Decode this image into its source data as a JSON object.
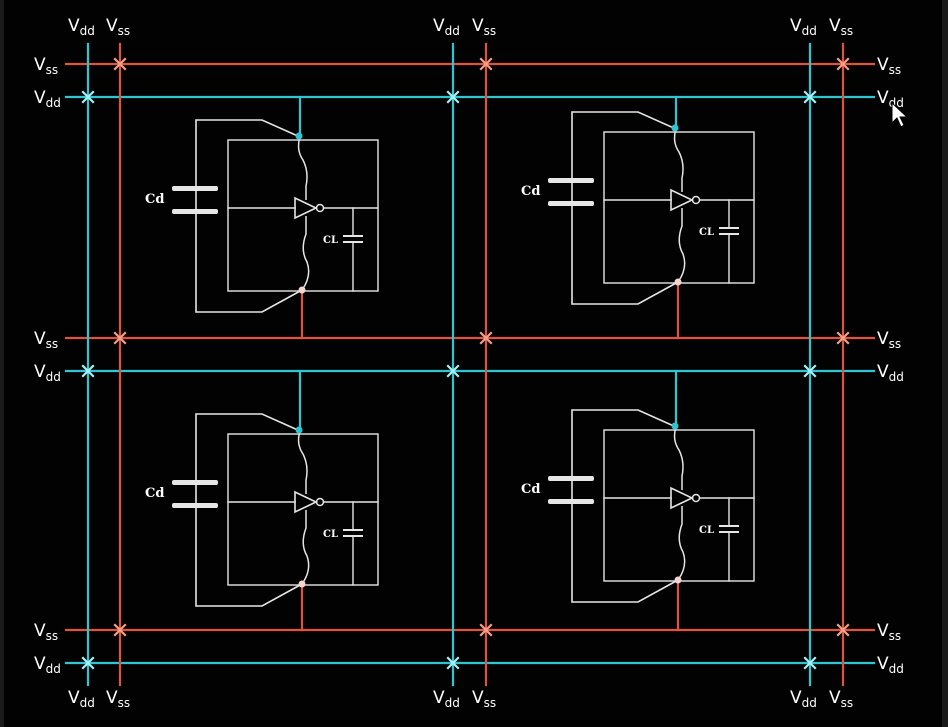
{
  "colors": {
    "vdd": "#2fc6d4",
    "vss": "#e0553a",
    "circuit": "#e6e6e6",
    "background": "#020202"
  },
  "labels": {
    "vdd": {
      "main": "V",
      "sub": "dd"
    },
    "vss": {
      "main": "V",
      "sub": "ss"
    },
    "cd": "Cd",
    "cl": "CL"
  },
  "grid": {
    "vertical_rails": [
      "Vdd",
      "Vss",
      "Vdd",
      "Vss",
      "Vdd",
      "Vss"
    ],
    "horizontal_rails": [
      "Vss",
      "Vdd",
      "Vss",
      "Vdd",
      "Vss",
      "Vdd"
    ],
    "cells": [
      {
        "row": 1,
        "col": 1,
        "cd_label": "Cd",
        "cl_label": "CL"
      },
      {
        "row": 1,
        "col": 2,
        "cd_label": "Cd",
        "cl_label": "CL"
      },
      {
        "row": 2,
        "col": 1,
        "cd_label": "Cd",
        "cl_label": "CL"
      },
      {
        "row": 2,
        "col": 2,
        "cd_label": "Cd",
        "cl_label": "CL"
      }
    ]
  }
}
